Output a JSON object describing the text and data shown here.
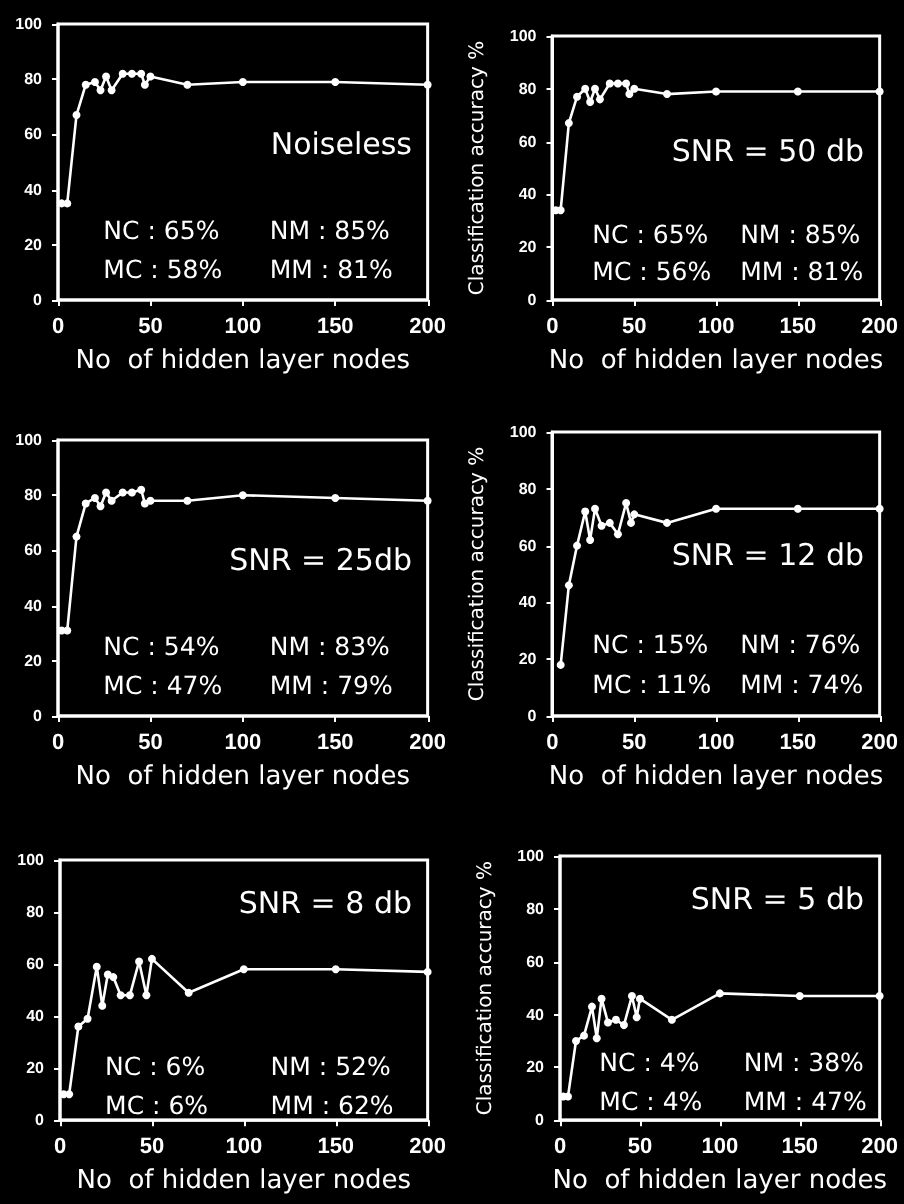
{
  "chart_data": [
    {
      "type": "line",
      "title": "Noiseless",
      "xlabel": "No  of hidden layer nodes",
      "x": [
        2,
        5,
        10,
        15,
        20,
        23,
        26,
        29,
        35,
        40,
        45,
        47,
        50,
        70,
        100,
        150,
        200
      ],
      "values": [
        35,
        35,
        67,
        78,
        79,
        76,
        81,
        76,
        82,
        82,
        82,
        78,
        81,
        78,
        79,
        79,
        78
      ],
      "color": "#ffffff",
      "xlim": [
        0,
        200
      ],
      "xticks": [
        0,
        50,
        100,
        150,
        200
      ],
      "ylim": [
        0,
        100
      ],
      "yticks": [
        0,
        20,
        40,
        60,
        80,
        100
      ],
      "grid": false,
      "marker": "circle",
      "line_style": "solid",
      "annotations": [
        "NC : 65%",
        "NM : 85%",
        "MC : 58%",
        "MM : 81%"
      ]
    },
    {
      "type": "line",
      "title": "SNR = 50 db",
      "xlabel": "No  of hidden layer nodes",
      "ylabel": "Classification accuracy %",
      "x": [
        2,
        5,
        10,
        15,
        20,
        23,
        26,
        29,
        35,
        40,
        45,
        47,
        50,
        70,
        100,
        150,
        200
      ],
      "values": [
        34,
        34,
        67,
        77,
        80,
        75,
        80,
        76,
        82,
        82,
        82,
        78,
        80,
        78,
        79,
        79,
        79
      ],
      "color": "#ffffff",
      "xlim": [
        0,
        200
      ],
      "xticks": [
        0,
        50,
        100,
        150,
        200
      ],
      "ylim": [
        0,
        100
      ],
      "yticks": [
        0,
        20,
        40,
        60,
        80,
        100
      ],
      "grid": false,
      "marker": "circle",
      "line_style": "solid",
      "annotations": [
        "NC : 65%",
        "NM : 85%",
        "MC : 56%",
        "MM : 81%"
      ]
    },
    {
      "type": "line",
      "title": "SNR = 25db",
      "xlabel": "No  of hidden layer nodes",
      "x": [
        2,
        5,
        10,
        15,
        20,
        23,
        26,
        29,
        35,
        40,
        45,
        47,
        50,
        70,
        100,
        150,
        200
      ],
      "values": [
        31,
        31,
        65,
        77,
        79,
        76,
        81,
        78,
        81,
        81,
        82,
        77,
        78,
        78,
        80,
        79,
        78
      ],
      "color": "#ffffff",
      "xlim": [
        0,
        200
      ],
      "xticks": [
        0,
        50,
        100,
        150,
        200
      ],
      "ylim": [
        0,
        100
      ],
      "yticks": [
        0,
        20,
        40,
        60,
        80,
        100
      ],
      "grid": false,
      "marker": "circle",
      "line_style": "solid",
      "annotations": [
        "NC : 54%",
        "NM : 83%",
        "MC : 47%",
        "MM : 79%"
      ]
    },
    {
      "type": "line",
      "title": "SNR = 12 db",
      "xlabel": "No  of hidden layer nodes",
      "ylabel": "Classification accuracy %",
      "x": [
        5,
        10,
        15,
        20,
        23,
        26,
        30,
        35,
        40,
        45,
        48,
        50,
        70,
        100,
        150,
        200
      ],
      "values": [
        18,
        46,
        60,
        72,
        62,
        73,
        67,
        68,
        64,
        75,
        68,
        71,
        68,
        73,
        73,
        73
      ],
      "color": "#ffffff",
      "xlim": [
        0,
        200
      ],
      "xticks": [
        0,
        50,
        100,
        150,
        200
      ],
      "ylim": [
        0,
        100
      ],
      "yticks": [
        0,
        20,
        40,
        60,
        80,
        100
      ],
      "grid": false,
      "marker": "circle",
      "line_style": "solid",
      "annotations": [
        "NC : 15%",
        "NM : 76%",
        "MC : 11%",
        "MM : 74%"
      ]
    },
    {
      "type": "line",
      "title": "SNR = 8 db",
      "xlabel": "No  of hidden layer nodes",
      "x": [
        2,
        5,
        10,
        15,
        20,
        23,
        26,
        29,
        33,
        38,
        43,
        47,
        50,
        70,
        100,
        150,
        200
      ],
      "values": [
        10,
        10,
        36,
        39,
        59,
        44,
        56,
        55,
        48,
        48,
        61,
        48,
        62,
        49,
        58,
        58,
        57
      ],
      "color": "#ffffff",
      "xlim": [
        0,
        200
      ],
      "xticks": [
        0,
        50,
        100,
        150,
        200
      ],
      "ylim": [
        0,
        100
      ],
      "yticks": [
        0,
        20,
        40,
        60,
        80,
        100
      ],
      "grid": false,
      "marker": "circle",
      "line_style": "solid",
      "annotations": [
        "NC : 6%",
        "NM : 52%",
        "MC : 6%",
        "MM : 62%"
      ]
    },
    {
      "type": "line",
      "title": "SNR = 5 db",
      "xlabel": "No  of hidden layer nodes",
      "ylabel": "Classification accuracy %",
      "x": [
        2,
        5,
        10,
        15,
        20,
        23,
        26,
        30,
        35,
        40,
        45,
        48,
        50,
        70,
        100,
        150,
        200
      ],
      "values": [
        9,
        9,
        30,
        32,
        43,
        31,
        46,
        37,
        38,
        36,
        47,
        39,
        46,
        38,
        48,
        47,
        47
      ],
      "color": "#ffffff",
      "xlim": [
        0,
        200
      ],
      "xticks": [
        0,
        50,
        100,
        150,
        200
      ],
      "ylim": [
        0,
        100
      ],
      "yticks": [
        0,
        20,
        40,
        60,
        80,
        100
      ],
      "grid": false,
      "marker": "circle",
      "line_style": "solid",
      "annotations": [
        "NC : 4%",
        "NM : 38%",
        "MC : 4%",
        "MM : 47%"
      ]
    }
  ]
}
